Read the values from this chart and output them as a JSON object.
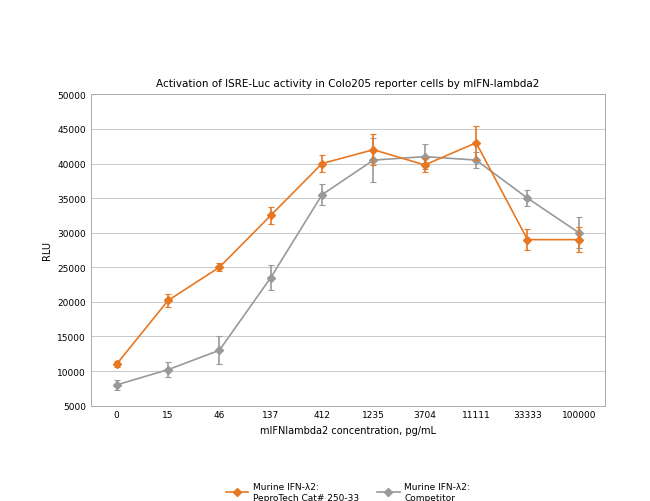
{
  "title": "Activation of ISRE-Luc activity in Colo205 reporter cells by mIFN-lambda2",
  "xlabel": "mIFNlambda2 concentration, pg/mL",
  "ylabel": "RLU",
  "x_labels": [
    "0",
    "15",
    "46",
    "137",
    "412",
    "1235",
    "3704",
    "11111",
    "33333",
    "100000"
  ],
  "x_values": [
    0,
    1,
    2,
    3,
    4,
    5,
    6,
    7,
    8,
    9
  ],
  "orange_y": [
    11000,
    20200,
    25000,
    32500,
    40000,
    42000,
    39800,
    43000,
    29000,
    29000
  ],
  "orange_yerr": [
    400,
    900,
    600,
    1200,
    1200,
    2200,
    1000,
    2500,
    1500,
    1800
  ],
  "gray_y": [
    8000,
    10200,
    13000,
    23500,
    35500,
    40500,
    41000,
    40500,
    35000,
    30000
  ],
  "gray_yerr": [
    700,
    1100,
    2000,
    1800,
    1500,
    3200,
    1800,
    1200,
    1200,
    2200
  ],
  "orange_color": "#E87722",
  "gray_color": "#999999",
  "ylim": [
    5000,
    50000
  ],
  "yticks": [
    5000,
    10000,
    15000,
    20000,
    25000,
    30000,
    35000,
    40000,
    45000,
    50000
  ],
  "legend_orange_line1": "Murine IFN-λ2:",
  "legend_orange_line2": "PeproTech Cat# 250-33",
  "legend_gray_line1": "Murine IFN-λ2:",
  "legend_gray_line2": "Competitor",
  "background_color": "#ffffff",
  "grid_color": "#c8c8c8",
  "title_fontsize": 7.5,
  "axis_label_fontsize": 7,
  "tick_fontsize": 6.5,
  "legend_fontsize": 6.5
}
